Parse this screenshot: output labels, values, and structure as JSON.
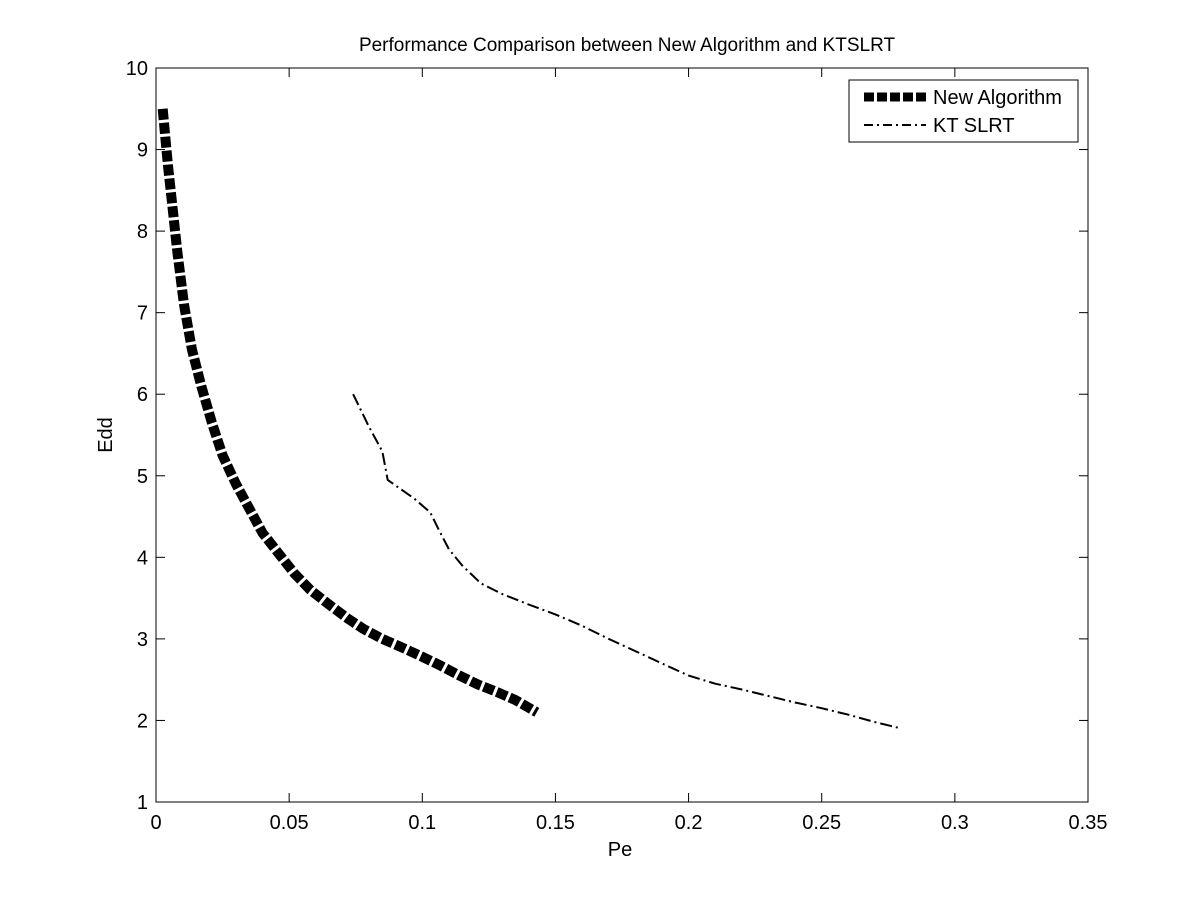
{
  "chart_data": {
    "type": "line",
    "title": "Performance Comparison between New Algorithm and KTSLRT",
    "xlabel": "Pe",
    "ylabel": "Edd",
    "xlim": [
      0,
      0.35
    ],
    "ylim": [
      1,
      10
    ],
    "xticks": [
      0,
      0.05,
      0.1,
      0.15,
      0.2,
      0.25,
      0.3,
      0.35
    ],
    "yticks": [
      1,
      2,
      3,
      4,
      5,
      6,
      7,
      8,
      9,
      10
    ],
    "xtick_labels": [
      "0",
      "0.05",
      "0.1",
      "0.15",
      "0.2",
      "0.25",
      "0.3",
      "0.35"
    ],
    "ytick_labels": [
      "1",
      "2",
      "3",
      "4",
      "5",
      "6",
      "7",
      "8",
      "9",
      "10"
    ],
    "grid": false,
    "legend_position": "top-right",
    "series": [
      {
        "name": "New Algorithm",
        "style": "thick-dashed",
        "color": "#000000",
        "x": [
          0.0025,
          0.0035,
          0.0045,
          0.006,
          0.008,
          0.0105,
          0.0135,
          0.017,
          0.021,
          0.025,
          0.03,
          0.035,
          0.04,
          0.046,
          0.052,
          0.058,
          0.065,
          0.072,
          0.078,
          0.085,
          0.092,
          0.1,
          0.107,
          0.114,
          0.121,
          0.128,
          0.135,
          0.143
        ],
        "y": [
          9.5,
          9.15,
          8.8,
          8.35,
          7.75,
          7.1,
          6.55,
          6.1,
          5.65,
          5.25,
          4.9,
          4.6,
          4.3,
          4.05,
          3.8,
          3.6,
          3.42,
          3.25,
          3.12,
          3.0,
          2.9,
          2.78,
          2.67,
          2.55,
          2.44,
          2.35,
          2.25,
          2.1
        ]
      },
      {
        "name": "KT SLRT",
        "style": "dash-dot",
        "color": "#000000",
        "x": [
          0.074,
          0.08,
          0.085,
          0.087,
          0.09,
          0.097,
          0.103,
          0.106,
          0.11,
          0.115,
          0.122,
          0.13,
          0.14,
          0.15,
          0.16,
          0.17,
          0.18,
          0.19,
          0.2,
          0.21,
          0.22,
          0.23,
          0.24,
          0.25,
          0.26,
          0.27,
          0.28
        ],
        "y": [
          6.0,
          5.6,
          5.3,
          4.95,
          4.88,
          4.72,
          4.55,
          4.35,
          4.1,
          3.9,
          3.68,
          3.55,
          3.42,
          3.3,
          3.16,
          3.0,
          2.85,
          2.7,
          2.55,
          2.45,
          2.38,
          2.3,
          2.22,
          2.15,
          2.07,
          1.98,
          1.9
        ]
      }
    ]
  }
}
